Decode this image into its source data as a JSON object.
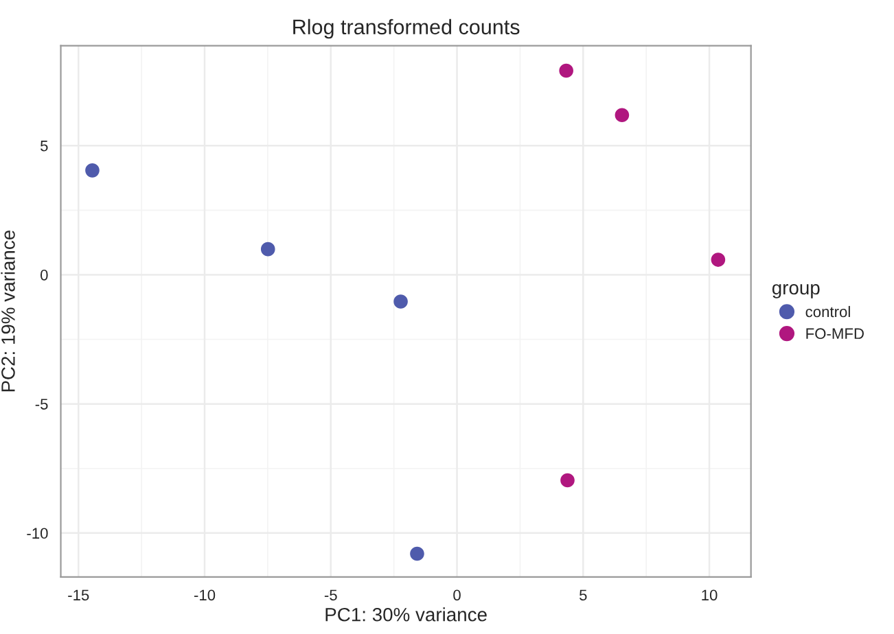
{
  "chart_data": {
    "type": "scatter",
    "title": "Rlog transformed counts",
    "xlabel": "PC1: 30% variance",
    "ylabel": "PC2: 19% variance",
    "legend_title": "group",
    "series": [
      {
        "name": "control",
        "color": "#4f5bac",
        "x": [
          -14.45,
          -7.49,
          -2.23,
          -1.58
        ],
        "values": [
          4.04,
          0.99,
          -1.04,
          -10.8
        ]
      },
      {
        "name": "FO-MFD",
        "color": "#b0177f",
        "x": [
          4.33,
          6.54,
          10.35,
          4.38
        ],
        "values": [
          7.9,
          6.18,
          0.58,
          -7.96
        ]
      }
    ],
    "xlim": [
      -15.7,
      11.65
    ],
    "ylim": [
      -11.7,
      8.87
    ],
    "xticks": [
      -15,
      -10,
      -5,
      0,
      5,
      10
    ],
    "yticks": [
      -10,
      -5,
      0,
      5
    ],
    "grid": true,
    "legend": "right",
    "marker": "circle"
  }
}
